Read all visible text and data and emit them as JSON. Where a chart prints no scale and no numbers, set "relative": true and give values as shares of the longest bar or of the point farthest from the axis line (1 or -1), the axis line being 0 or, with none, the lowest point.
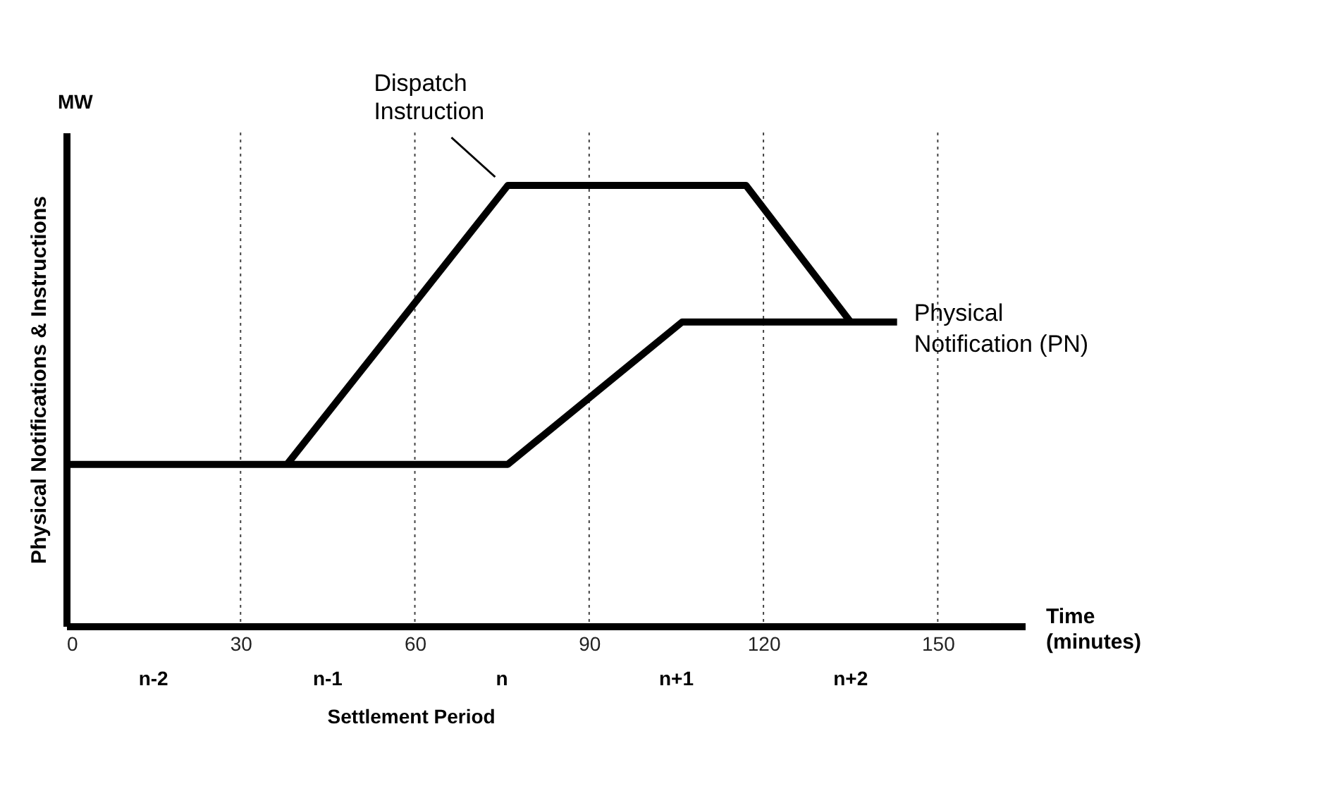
{
  "chart_data": {
    "type": "line",
    "relative": true,
    "xlabel": "Time (minutes)",
    "ylabel": "Physical Notifications & Instructions",
    "annotations": [
      "MW",
      "n-2",
      "n-1",
      "n",
      "n+1",
      "n+2",
      "Settlement Period"
    ],
    "xlim": [
      0,
      165
    ],
    "xticks": [
      0,
      30,
      60,
      90,
      120,
      150
    ],
    "legend": false,
    "ref_lines": [
      {
        "axis": "x",
        "value": 30,
        "line_style": "dotted"
      },
      {
        "axis": "x",
        "value": 60,
        "line_style": "dotted"
      },
      {
        "axis": "x",
        "value": 90,
        "line_style": "dotted"
      },
      {
        "axis": "x",
        "value": 120,
        "line_style": "dotted"
      },
      {
        "axis": "x",
        "value": 150,
        "line_style": "dotted"
      }
    ],
    "marker": "none",
    "line_style": "solid",
    "series": [
      {
        "name": "Dispatch Instruction",
        "color": "#000000",
        "x": [
          38,
          76,
          117,
          135
        ],
        "values": [
          0.367,
          1,
          1,
          0.69
        ]
      },
      {
        "name": "Physical Notification (PN)",
        "color": "#000000",
        "x": [
          0,
          76,
          106,
          143
        ],
        "values": [
          0.367,
          0.367,
          0.69,
          0.69
        ]
      }
    ]
  }
}
